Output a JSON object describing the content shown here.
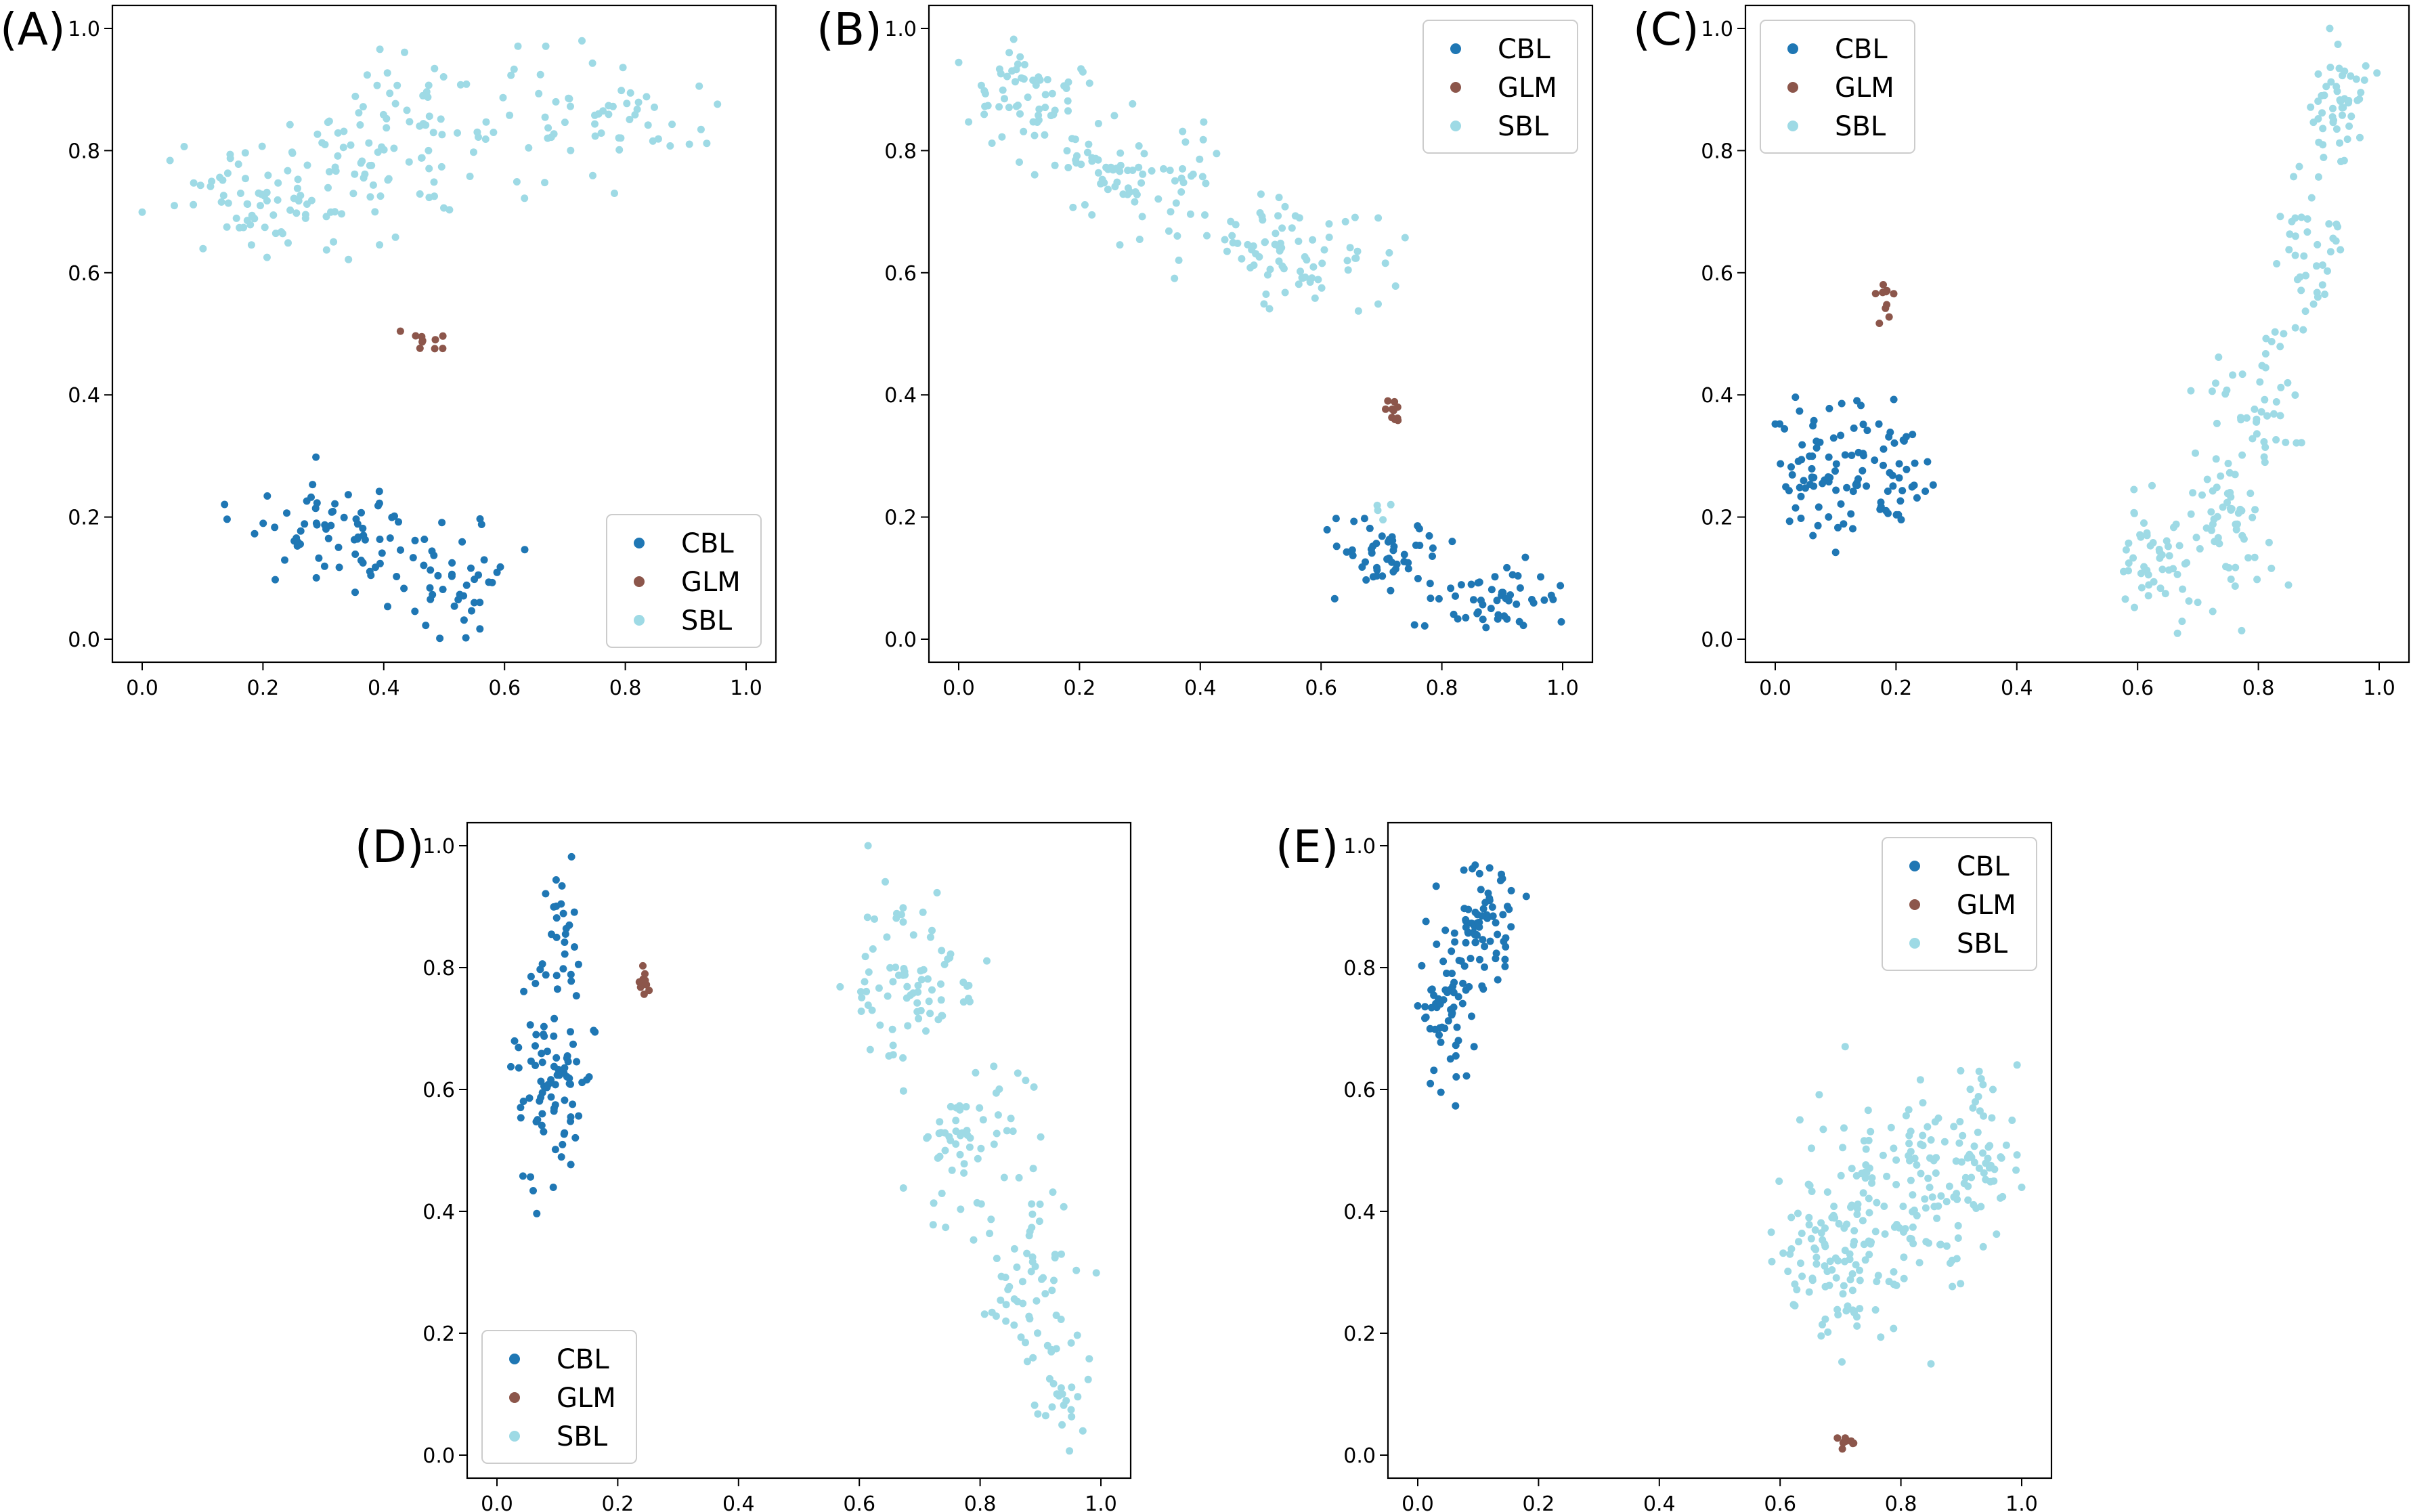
{
  "figure": {
    "series_names": [
      "CBL",
      "GLM",
      "SBL"
    ],
    "colors": {
      "CBL": "#1f77b4",
      "GLM": "#8c564b",
      "SBL": "#9edae5"
    }
  },
  "chart_data": [
    {
      "type": "scatter",
      "panel_label": "(A)",
      "xlim": [
        0,
        1
      ],
      "ylim": [
        0,
        1
      ],
      "xticks": [
        "0.0",
        "0.2",
        "0.4",
        "0.6",
        "0.8",
        "1.0"
      ],
      "yticks": [
        "0.0",
        "0.2",
        "0.4",
        "0.6",
        "0.8",
        "1.0"
      ],
      "legend": {
        "position": "lower-right",
        "entries": [
          "CBL",
          "GLM",
          "SBL"
        ]
      },
      "series": [
        {
          "name": "CBL",
          "clusters": [
            {
              "cx": 0.33,
              "cy": 0.17,
              "sx": 0.09,
              "sy": 0.05,
              "n": 70
            },
            {
              "cx": 0.52,
              "cy": 0.1,
              "sx": 0.06,
              "sy": 0.05,
              "n": 40
            }
          ]
        },
        {
          "name": "GLM",
          "clusters": [
            {
              "cx": 0.47,
              "cy": 0.49,
              "sx": 0.02,
              "sy": 0.014,
              "n": 10
            }
          ]
        },
        {
          "name": "SBL",
          "clusters": [
            {
              "cx": 0.2,
              "cy": 0.72,
              "sx": 0.1,
              "sy": 0.06,
              "n": 70
            },
            {
              "cx": 0.45,
              "cy": 0.82,
              "sx": 0.12,
              "sy": 0.09,
              "n": 100
            },
            {
              "cx": 0.78,
              "cy": 0.85,
              "sx": 0.1,
              "sy": 0.06,
              "n": 50
            }
          ]
        }
      ]
    },
    {
      "type": "scatter",
      "panel_label": "(B)",
      "xlim": [
        0,
        1
      ],
      "ylim": [
        0,
        1
      ],
      "xticks": [
        "0.0",
        "0.2",
        "0.4",
        "0.6",
        "0.8",
        "1.0"
      ],
      "yticks": [
        "0.0",
        "0.2",
        "0.4",
        "0.6",
        "0.8",
        "1.0"
      ],
      "legend": {
        "position": "top-right",
        "entries": [
          "CBL",
          "GLM",
          "SBL"
        ]
      },
      "series": [
        {
          "name": "CBL",
          "clusters": [
            {
              "cx": 0.7,
              "cy": 0.13,
              "sx": 0.07,
              "sy": 0.035,
              "n": 50
            },
            {
              "cx": 0.88,
              "cy": 0.06,
              "sx": 0.06,
              "sy": 0.035,
              "n": 50
            }
          ]
        },
        {
          "name": "GLM",
          "clusters": [
            {
              "cx": 0.72,
              "cy": 0.37,
              "sx": 0.012,
              "sy": 0.015,
              "n": 10
            }
          ]
        },
        {
          "name": "SBL",
          "clusters": [
            {
              "cx": 0.12,
              "cy": 0.88,
              "sx": 0.06,
              "sy": 0.05,
              "n": 60
            },
            {
              "cx": 0.3,
              "cy": 0.76,
              "sx": 0.08,
              "sy": 0.06,
              "n": 80
            },
            {
              "cx": 0.55,
              "cy": 0.63,
              "sx": 0.09,
              "sy": 0.05,
              "n": 80
            },
            {
              "cx": 0.7,
              "cy": 0.2,
              "sx": 0.02,
              "sy": 0.015,
              "n": 4
            }
          ]
        }
      ]
    },
    {
      "type": "scatter",
      "panel_label": "(C)",
      "xlim": [
        0,
        1
      ],
      "ylim": [
        0,
        1
      ],
      "xticks": [
        "0.0",
        "0.2",
        "0.4",
        "0.6",
        "0.8",
        "1.0"
      ],
      "yticks": [
        "0.0",
        "0.2",
        "0.4",
        "0.6",
        "0.8",
        "1.0"
      ],
      "legend": {
        "position": "top-left",
        "entries": [
          "CBL",
          "GLM",
          "SBL"
        ]
      },
      "series": [
        {
          "name": "CBL",
          "clusters": [
            {
              "cx": 0.09,
              "cy": 0.28,
              "sx": 0.06,
              "sy": 0.07,
              "n": 80
            },
            {
              "cx": 0.2,
              "cy": 0.26,
              "sx": 0.03,
              "sy": 0.06,
              "n": 30
            }
          ]
        },
        {
          "name": "GLM",
          "clusters": [
            {
              "cx": 0.18,
              "cy": 0.56,
              "sx": 0.012,
              "sy": 0.03,
              "n": 10
            }
          ]
        },
        {
          "name": "SBL",
          "clusters": [
            {
              "cx": 0.63,
              "cy": 0.13,
              "sx": 0.04,
              "sy": 0.05,
              "n": 50
            },
            {
              "cx": 0.75,
              "cy": 0.2,
              "sx": 0.04,
              "sy": 0.1,
              "n": 60
            },
            {
              "cx": 0.8,
              "cy": 0.4,
              "sx": 0.04,
              "sy": 0.07,
              "n": 40
            },
            {
              "cx": 0.88,
              "cy": 0.65,
              "sx": 0.04,
              "sy": 0.08,
              "n": 40
            },
            {
              "cx": 0.93,
              "cy": 0.87,
              "sx": 0.03,
              "sy": 0.06,
              "n": 50
            }
          ]
        }
      ]
    },
    {
      "type": "scatter",
      "panel_label": "(D)",
      "xlim": [
        0,
        1
      ],
      "ylim": [
        0,
        1
      ],
      "xticks": [
        "0.0",
        "0.2",
        "0.4",
        "0.6",
        "0.8",
        "1.0"
      ],
      "yticks": [
        "0.0",
        "0.2",
        "0.4",
        "0.6",
        "0.8",
        "1.0"
      ],
      "legend": {
        "position": "lower-left",
        "entries": [
          "CBL",
          "GLM",
          "SBL"
        ]
      },
      "series": [
        {
          "name": "CBL",
          "clusters": [
            {
              "cx": 0.09,
              "cy": 0.62,
              "sx": 0.04,
              "sy": 0.1,
              "n": 90
            },
            {
              "cx": 0.11,
              "cy": 0.88,
              "sx": 0.02,
              "sy": 0.05,
              "n": 20
            }
          ]
        },
        {
          "name": "GLM",
          "clusters": [
            {
              "cx": 0.24,
              "cy": 0.78,
              "sx": 0.01,
              "sy": 0.02,
              "n": 10
            }
          ]
        },
        {
          "name": "SBL",
          "clusters": [
            {
              "cx": 0.68,
              "cy": 0.78,
              "sx": 0.06,
              "sy": 0.08,
              "n": 80
            },
            {
              "cx": 0.78,
              "cy": 0.52,
              "sx": 0.05,
              "sy": 0.08,
              "n": 60
            },
            {
              "cx": 0.88,
              "cy": 0.3,
              "sx": 0.04,
              "sy": 0.07,
              "n": 50
            },
            {
              "cx": 0.93,
              "cy": 0.12,
              "sx": 0.025,
              "sy": 0.06,
              "n": 30
            }
          ]
        }
      ]
    },
    {
      "type": "scatter",
      "panel_label": "(E)",
      "xlim": [
        0,
        1
      ],
      "ylim": [
        0,
        1
      ],
      "xticks": [
        "0.0",
        "0.2",
        "0.4",
        "0.6",
        "0.8",
        "1.0"
      ],
      "yticks": [
        "0.0",
        "0.2",
        "0.4",
        "0.6",
        "0.8",
        "1.0"
      ],
      "legend": {
        "position": "top-right",
        "entries": [
          "CBL",
          "GLM",
          "SBL"
        ]
      },
      "series": [
        {
          "name": "CBL",
          "clusters": [
            {
              "cx": 0.05,
              "cy": 0.72,
              "sx": 0.03,
              "sy": 0.06,
              "n": 60
            },
            {
              "cx": 0.11,
              "cy": 0.87,
              "sx": 0.035,
              "sy": 0.06,
              "n": 70
            }
          ]
        },
        {
          "name": "GLM",
          "clusters": [
            {
              "cx": 0.705,
              "cy": 0.025,
              "sx": 0.008,
              "sy": 0.015,
              "n": 10
            }
          ]
        },
        {
          "name": "SBL",
          "clusters": [
            {
              "cx": 0.68,
              "cy": 0.33,
              "sx": 0.05,
              "sy": 0.08,
              "n": 90
            },
            {
              "cx": 0.8,
              "cy": 0.42,
              "sx": 0.07,
              "sy": 0.1,
              "n": 120
            },
            {
              "cx": 0.92,
              "cy": 0.5,
              "sx": 0.04,
              "sy": 0.07,
              "n": 60
            }
          ]
        }
      ]
    }
  ]
}
